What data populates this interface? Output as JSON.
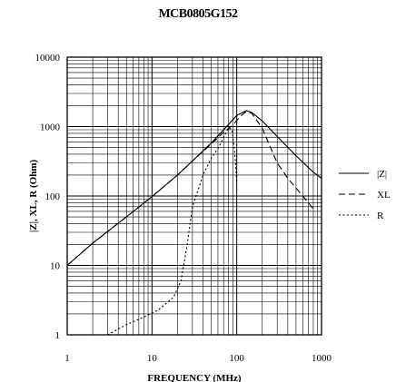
{
  "chart_data": {
    "type": "line",
    "title": "MCB0805G152",
    "xlabel": "FREQUENCY (MHz)",
    "ylabel": "|Z|, XL, R (Ohm)",
    "x_scale": "log",
    "y_scale": "log",
    "xlim": [
      1,
      1000
    ],
    "ylim": [
      1,
      10000
    ],
    "x_ticks": [
      "1",
      "10",
      "100",
      "1000"
    ],
    "y_ticks": [
      "10000",
      "1000",
      "100",
      "10",
      "1"
    ],
    "grid": true,
    "legend_position": "right",
    "series": [
      {
        "name": "|Z|",
        "style": "solid",
        "points": [
          [
            1,
            10
          ],
          [
            2,
            21
          ],
          [
            5,
            50
          ],
          [
            10,
            98
          ],
          [
            20,
            200
          ],
          [
            30,
            320
          ],
          [
            50,
            580
          ],
          [
            70,
            900
          ],
          [
            100,
            1450
          ],
          [
            130,
            1700
          ],
          [
            150,
            1600
          ],
          [
            200,
            1200
          ],
          [
            300,
            720
          ],
          [
            500,
            380
          ],
          [
            800,
            220
          ],
          [
            1000,
            180
          ]
        ]
      },
      {
        "name": "XL",
        "style": "dashed",
        "points": [
          [
            1,
            10
          ],
          [
            2,
            21
          ],
          [
            5,
            50
          ],
          [
            10,
            98
          ],
          [
            20,
            200
          ],
          [
            30,
            320
          ],
          [
            50,
            560
          ],
          [
            70,
            830
          ],
          [
            90,
            1050
          ],
          [
            110,
            1400
          ],
          [
            130,
            1650
          ],
          [
            150,
            1550
          ],
          [
            200,
            950
          ],
          [
            250,
            500
          ],
          [
            300,
            300
          ],
          [
            400,
            180
          ],
          [
            500,
            130
          ],
          [
            600,
            100
          ],
          [
            700,
            80
          ],
          [
            800,
            65
          ]
        ]
      },
      {
        "name": "R",
        "style": "dotted",
        "points": [
          [
            3,
            1
          ],
          [
            5,
            1.4
          ],
          [
            8,
            1.8
          ],
          [
            12,
            2.3
          ],
          [
            18,
            3.5
          ],
          [
            22,
            6
          ],
          [
            26,
            20
          ],
          [
            30,
            70
          ],
          [
            40,
            200
          ],
          [
            50,
            350
          ],
          [
            60,
            480
          ],
          [
            70,
            700
          ],
          [
            80,
            960
          ],
          [
            88,
            900
          ],
          [
            95,
            400
          ],
          [
            100,
            160
          ]
        ]
      }
    ]
  }
}
